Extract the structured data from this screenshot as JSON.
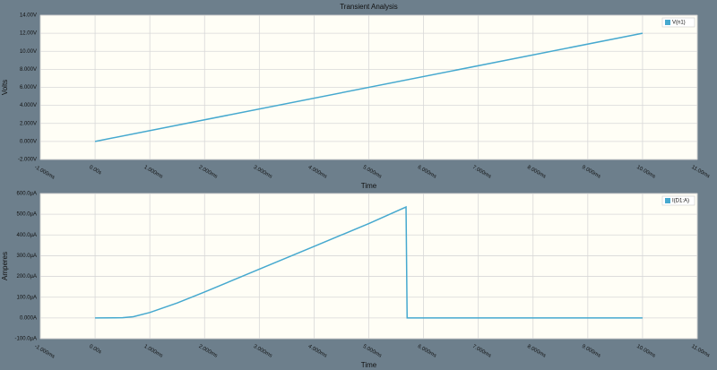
{
  "chart_data": [
    {
      "type": "line",
      "title": "Transient Analysis",
      "xlabel": "Time",
      "ylabel": "Volts",
      "x": [
        0,
        10
      ],
      "series": [
        {
          "name": "V(n1)",
          "color": "#46a9cf",
          "values": [
            0,
            12
          ]
        }
      ],
      "xlim": [
        -1,
        11
      ],
      "ylim": [
        -2,
        14
      ],
      "xticks": [
        {
          "value": -1,
          "label": "-1.000ms"
        },
        {
          "value": 0,
          "label": "0.00s"
        },
        {
          "value": 1,
          "label": "1.000ms"
        },
        {
          "value": 2,
          "label": "2.000ms"
        },
        {
          "value": 3,
          "label": "3.000ms"
        },
        {
          "value": 4,
          "label": "4.000ms"
        },
        {
          "value": 5,
          "label": "5.000ms"
        },
        {
          "value": 6,
          "label": "6.000ms"
        },
        {
          "value": 7,
          "label": "7.000ms"
        },
        {
          "value": 8,
          "label": "8.000ms"
        },
        {
          "value": 9,
          "label": "9.000ms"
        },
        {
          "value": 10,
          "label": "10.00ms"
        },
        {
          "value": 11,
          "label": "11.00ms"
        }
      ],
      "yticks": [
        {
          "value": -2,
          "label": "-2.000V"
        },
        {
          "value": 0,
          "label": "0.000V"
        },
        {
          "value": 2,
          "label": "2.000V"
        },
        {
          "value": 4,
          "label": "4.000V"
        },
        {
          "value": 6,
          "label": "6.000V"
        },
        {
          "value": 8,
          "label": "8.000V"
        },
        {
          "value": 10,
          "label": "10.00V"
        },
        {
          "value": 12,
          "label": "12.00V"
        },
        {
          "value": 14,
          "label": "14.00V"
        }
      ],
      "grid": true,
      "legend": "upper right"
    },
    {
      "type": "line",
      "xlabel": "Time",
      "ylabel": "Amperes",
      "x": [
        0,
        0.5,
        0.7,
        1,
        1.5,
        2,
        3,
        4,
        5,
        5.68,
        5.7,
        10
      ],
      "series": [
        {
          "name": "I(D1:A)",
          "color": "#46a9cf",
          "values": [
            0,
            1,
            6,
            26,
            72,
            125,
            235,
            345,
            455,
            535,
            0,
            0
          ]
        }
      ],
      "xlim": [
        -1,
        11
      ],
      "ylim": [
        -100,
        600
      ],
      "xticks": [
        {
          "value": -1,
          "label": "-1.000ms"
        },
        {
          "value": 0,
          "label": "0.00s"
        },
        {
          "value": 1,
          "label": "1.000ms"
        },
        {
          "value": 2,
          "label": "2.000ms"
        },
        {
          "value": 3,
          "label": "3.000ms"
        },
        {
          "value": 4,
          "label": "4.000ms"
        },
        {
          "value": 5,
          "label": "5.000ms"
        },
        {
          "value": 6,
          "label": "6.000ms"
        },
        {
          "value": 7,
          "label": "7.000ms"
        },
        {
          "value": 8,
          "label": "8.000ms"
        },
        {
          "value": 9,
          "label": "9.000ms"
        },
        {
          "value": 10,
          "label": "10.00ms"
        },
        {
          "value": 11,
          "label": "11.00ms"
        }
      ],
      "yticks": [
        {
          "value": -100,
          "label": "-100.0µA"
        },
        {
          "value": 0,
          "label": "0.000A"
        },
        {
          "value": 100,
          "label": "100.0µA"
        },
        {
          "value": 200,
          "label": "200.0µA"
        },
        {
          "value": 300,
          "label": "300.0µA"
        },
        {
          "value": 400,
          "label": "400.0µA"
        },
        {
          "value": 500,
          "label": "500.0µA"
        },
        {
          "value": 600,
          "label": "600.0µA"
        }
      ],
      "grid": true,
      "legend": "upper right"
    }
  ]
}
